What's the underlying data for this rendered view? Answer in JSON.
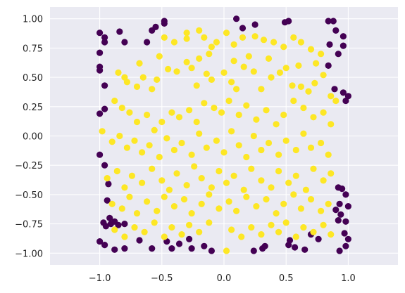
{
  "chart_data": {
    "type": "scatter",
    "title": "",
    "xlabel": "",
    "ylabel": "",
    "xlim": [
      -1.4,
      1.4
    ],
    "ylim": [
      -1.1,
      1.1
    ],
    "xticks": [
      -1.0,
      -0.5,
      0.0,
      0.5,
      1.0
    ],
    "xtick_labels": [
      "−1.0",
      "−0.5",
      "0.0",
      "0.5",
      "1.0"
    ],
    "yticks": [
      -1.0,
      -0.75,
      -0.5,
      -0.25,
      0.0,
      0.25,
      0.5,
      0.75,
      1.0
    ],
    "ytick_labels": [
      "−1.00",
      "−0.75",
      "−0.50",
      "−0.25",
      "0.00",
      "0.25",
      "0.50",
      "0.75",
      "1.00"
    ],
    "grid": true,
    "legend": "none",
    "colors": {
      "plot_background": "#eaeaf2",
      "grid": "#ffffff",
      "tick_text": "#262626",
      "class_0": "#440154",
      "class_1": "#fde725"
    },
    "series": [
      {
        "class": 0,
        "color": "#440154",
        "points": [
          [
            -1.0,
            0.88
          ],
          [
            -0.96,
            0.84
          ],
          [
            -0.96,
            0.8
          ],
          [
            -0.84,
            0.89
          ],
          [
            -0.8,
            0.8
          ],
          [
            -0.62,
            0.8
          ],
          [
            -0.58,
            0.9
          ],
          [
            -0.55,
            0.93
          ],
          [
            -0.48,
            0.98
          ],
          [
            -0.48,
            0.96
          ],
          [
            0.1,
            1.0
          ],
          [
            0.15,
            0.92
          ],
          [
            0.25,
            0.95
          ],
          [
            0.49,
            0.97
          ],
          [
            0.52,
            0.98
          ],
          [
            0.84,
            0.98
          ],
          [
            0.88,
            0.98
          ],
          [
            0.9,
            0.9
          ],
          [
            0.96,
            0.85
          ],
          [
            0.96,
            0.77
          ],
          [
            -1.0,
            0.71
          ],
          [
            -1.0,
            0.59
          ],
          [
            -1.0,
            0.56
          ],
          [
            -0.96,
            0.43
          ],
          [
            0.85,
            0.78
          ],
          [
            0.92,
            0.7
          ],
          [
            0.84,
            0.6
          ],
          [
            0.89,
            0.4
          ],
          [
            0.96,
            0.37
          ],
          [
            1.0,
            0.34
          ],
          [
            0.98,
            0.3
          ],
          [
            -1.0,
            0.19
          ],
          [
            -0.96,
            0.23
          ],
          [
            -1.0,
            -0.16
          ],
          [
            -0.96,
            -0.25
          ],
          [
            -0.93,
            -0.41
          ],
          [
            -0.94,
            -0.55
          ],
          [
            -0.92,
            -0.7
          ],
          [
            -0.97,
            -0.74
          ],
          [
            -0.95,
            -0.77
          ],
          [
            -0.91,
            -0.75
          ],
          [
            -0.88,
            -0.73
          ],
          [
            -0.85,
            -0.76
          ],
          [
            -0.8,
            -0.75
          ],
          [
            0.92,
            -0.44
          ],
          [
            0.95,
            -0.45
          ],
          [
            0.98,
            -0.5
          ],
          [
            0.93,
            -0.58
          ],
          [
            0.9,
            -0.63
          ],
          [
            0.94,
            -0.67
          ],
          [
            1.0,
            -0.6
          ],
          [
            0.98,
            -0.73
          ],
          [
            0.97,
            -0.83
          ],
          [
            0.92,
            -0.72
          ],
          [
            -1.0,
            -0.9
          ],
          [
            -0.96,
            -0.93
          ],
          [
            -0.88,
            -0.97
          ],
          [
            -0.8,
            -0.96
          ],
          [
            -0.68,
            -0.89
          ],
          [
            -0.58,
            -0.96
          ],
          [
            -0.46,
            -0.9
          ],
          [
            -0.42,
            -0.96
          ],
          [
            -0.36,
            -0.92
          ],
          [
            -0.28,
            -0.88
          ],
          [
            -0.26,
            -0.96
          ],
          [
            -0.16,
            -0.94
          ],
          [
            -0.1,
            -0.98
          ],
          [
            0.24,
            -0.98
          ],
          [
            0.31,
            -0.96
          ],
          [
            0.33,
            -0.94
          ],
          [
            0.53,
            -0.89
          ],
          [
            0.52,
            -0.93
          ],
          [
            0.57,
            -0.95
          ],
          [
            0.65,
            -0.97
          ],
          [
            0.7,
            -0.84
          ],
          [
            0.76,
            -0.88
          ],
          [
            0.93,
            -0.98
          ],
          [
            0.98,
            -0.94
          ],
          [
            1.0,
            -0.88
          ]
        ]
      },
      {
        "class": 1,
        "color": "#fde725",
        "points": [
          [
            -0.48,
            0.84
          ],
          [
            -0.4,
            0.8
          ],
          [
            -0.3,
            0.88
          ],
          [
            -0.3,
            0.83
          ],
          [
            -0.2,
            0.9
          ],
          [
            -0.16,
            0.84
          ],
          [
            -0.1,
            0.76
          ],
          [
            -0.06,
            0.8
          ],
          [
            0.02,
            0.88
          ],
          [
            0.08,
            0.78
          ],
          [
            0.15,
            0.84
          ],
          [
            0.25,
            0.85
          ],
          [
            0.32,
            0.82
          ],
          [
            0.4,
            0.8
          ],
          [
            0.48,
            0.76
          ],
          [
            0.56,
            0.84
          ],
          [
            0.62,
            0.8
          ],
          [
            0.7,
            0.74
          ],
          [
            0.78,
            0.7
          ],
          [
            -0.85,
            0.54
          ],
          [
            -0.8,
            0.5
          ],
          [
            -0.78,
            0.46
          ],
          [
            -0.7,
            0.42
          ],
          [
            -0.65,
            0.5
          ],
          [
            -0.58,
            0.4
          ],
          [
            -0.54,
            0.48
          ],
          [
            -0.45,
            0.57
          ],
          [
            -0.38,
            0.55
          ],
          [
            -0.3,
            0.63
          ],
          [
            -0.26,
            0.58
          ],
          [
            -0.22,
            0.43
          ],
          [
            -0.14,
            0.53
          ],
          [
            -0.1,
            0.48
          ],
          [
            0.0,
            0.54
          ],
          [
            0.06,
            0.46
          ],
          [
            0.1,
            0.4
          ],
          [
            0.16,
            0.59
          ],
          [
            0.24,
            0.55
          ],
          [
            0.3,
            0.4
          ],
          [
            0.38,
            0.5
          ],
          [
            0.45,
            0.54
          ],
          [
            0.5,
            0.58
          ],
          [
            0.55,
            0.43
          ],
          [
            0.62,
            0.42
          ],
          [
            0.68,
            0.38
          ],
          [
            0.73,
            0.45
          ],
          [
            0.8,
            0.52
          ],
          [
            0.86,
            0.34
          ],
          [
            0.9,
            0.3
          ],
          [
            -0.88,
            0.3
          ],
          [
            -0.82,
            0.24
          ],
          [
            -0.76,
            0.2
          ],
          [
            -0.7,
            0.12
          ],
          [
            -0.62,
            0.18
          ],
          [
            -0.56,
            0.05
          ],
          [
            -0.5,
            0.12
          ],
          [
            -0.42,
            0.2
          ],
          [
            -0.36,
            0.16
          ],
          [
            -0.28,
            0.22
          ],
          [
            -0.22,
            0.12
          ],
          [
            -0.16,
            0.28
          ],
          [
            -0.08,
            0.24
          ],
          [
            -0.02,
            0.2
          ],
          [
            0.04,
            0.3
          ],
          [
            0.12,
            0.18
          ],
          [
            0.18,
            0.26
          ],
          [
            0.26,
            0.14
          ],
          [
            0.34,
            0.22
          ],
          [
            0.42,
            0.1
          ],
          [
            0.48,
            0.18
          ],
          [
            0.56,
            0.3
          ],
          [
            0.64,
            0.24
          ],
          [
            0.72,
            0.16
          ],
          [
            0.8,
            0.2
          ],
          [
            0.86,
            0.1
          ],
          [
            -0.98,
            0.04
          ],
          [
            -0.9,
            -0.05
          ],
          [
            -0.84,
            0.0
          ],
          [
            -0.78,
            -0.1
          ],
          [
            -0.72,
            -0.04
          ],
          [
            -0.66,
            -0.14
          ],
          [
            -0.6,
            -0.08
          ],
          [
            -0.52,
            -0.18
          ],
          [
            -0.46,
            -0.02
          ],
          [
            -0.4,
            -0.12
          ],
          [
            -0.34,
            -0.06
          ],
          [
            -0.26,
            -0.16
          ],
          [
            -0.2,
            0.02
          ],
          [
            -0.14,
            -0.1
          ],
          [
            -0.06,
            -0.04
          ],
          [
            0.0,
            -0.14
          ],
          [
            0.06,
            0.04
          ],
          [
            0.12,
            -0.08
          ],
          [
            0.18,
            -0.18
          ],
          [
            0.24,
            0.0
          ],
          [
            0.3,
            -0.12
          ],
          [
            0.36,
            -0.06
          ],
          [
            0.44,
            -0.16
          ],
          [
            0.5,
            -0.04
          ],
          [
            0.58,
            -0.12
          ],
          [
            0.64,
            0.02
          ],
          [
            0.7,
            -0.1
          ],
          [
            0.78,
            -0.06
          ],
          [
            0.84,
            -0.16
          ],
          [
            -0.94,
            -0.36
          ],
          [
            -0.86,
            -0.3
          ],
          [
            -0.8,
            -0.44
          ],
          [
            -0.74,
            -0.34
          ],
          [
            -0.66,
            -0.4
          ],
          [
            -0.58,
            -0.28
          ],
          [
            -0.5,
            -0.38
          ],
          [
            -0.44,
            -0.46
          ],
          [
            -0.38,
            -0.32
          ],
          [
            -0.3,
            -0.42
          ],
          [
            -0.24,
            -0.26
          ],
          [
            -0.18,
            -0.36
          ],
          [
            -0.1,
            -0.44
          ],
          [
            -0.04,
            -0.3
          ],
          [
            0.02,
            -0.4
          ],
          [
            0.08,
            -0.34
          ],
          [
            0.16,
            -0.46
          ],
          [
            0.22,
            -0.28
          ],
          [
            0.3,
            -0.38
          ],
          [
            0.38,
            -0.44
          ],
          [
            0.44,
            -0.3
          ],
          [
            0.52,
            -0.4
          ],
          [
            0.58,
            -0.34
          ],
          [
            0.66,
            -0.46
          ],
          [
            0.72,
            -0.28
          ],
          [
            0.8,
            -0.38
          ],
          [
            0.86,
            -0.32
          ],
          [
            -0.9,
            -0.58
          ],
          [
            -0.82,
            -0.62
          ],
          [
            -0.76,
            -0.52
          ],
          [
            -0.7,
            -0.66
          ],
          [
            -0.62,
            -0.56
          ],
          [
            -0.54,
            -0.64
          ],
          [
            -0.48,
            -0.52
          ],
          [
            -0.4,
            -0.6
          ],
          [
            -0.32,
            -0.54
          ],
          [
            -0.26,
            -0.66
          ],
          [
            -0.18,
            -0.58
          ],
          [
            -0.12,
            -0.5
          ],
          [
            -0.04,
            -0.62
          ],
          [
            0.04,
            -0.56
          ],
          [
            0.1,
            -0.64
          ],
          [
            0.18,
            -0.52
          ],
          [
            0.26,
            -0.6
          ],
          [
            0.34,
            -0.54
          ],
          [
            0.42,
            -0.66
          ],
          [
            0.48,
            -0.58
          ],
          [
            0.56,
            -0.5
          ],
          [
            0.62,
            -0.62
          ],
          [
            0.7,
            -0.54
          ],
          [
            0.78,
            -0.64
          ],
          [
            0.84,
            -0.58
          ],
          [
            -0.88,
            -0.8
          ],
          [
            -0.8,
            -0.86
          ],
          [
            -0.72,
            -0.78
          ],
          [
            -0.64,
            -0.82
          ],
          [
            -0.56,
            -0.74
          ],
          [
            -0.48,
            -0.86
          ],
          [
            -0.42,
            -0.78
          ],
          [
            -0.34,
            -0.84
          ],
          [
            -0.28,
            -0.76
          ],
          [
            -0.2,
            -0.82
          ],
          [
            -0.12,
            -0.74
          ],
          [
            0.02,
            -0.98
          ],
          [
            0.06,
            -0.8
          ],
          [
            0.14,
            -0.86
          ],
          [
            0.22,
            -0.78
          ],
          [
            0.3,
            -0.84
          ],
          [
            0.38,
            -0.76
          ],
          [
            0.44,
            -0.82
          ],
          [
            0.5,
            -0.74
          ],
          [
            0.58,
            -0.86
          ],
          [
            0.64,
            -0.78
          ],
          [
            0.72,
            -0.82
          ],
          [
            0.8,
            -0.76
          ],
          [
            0.86,
            -0.84
          ],
          [
            -0.2,
            0.66
          ],
          [
            -0.12,
            0.7
          ],
          [
            0.08,
            0.64
          ],
          [
            0.2,
            0.68
          ],
          [
            0.36,
            0.66
          ],
          [
            -0.68,
            0.62
          ],
          [
            -0.52,
            0.68
          ],
          [
            0.6,
            0.6
          ],
          [
            0.74,
            0.62
          ]
        ]
      }
    ]
  }
}
